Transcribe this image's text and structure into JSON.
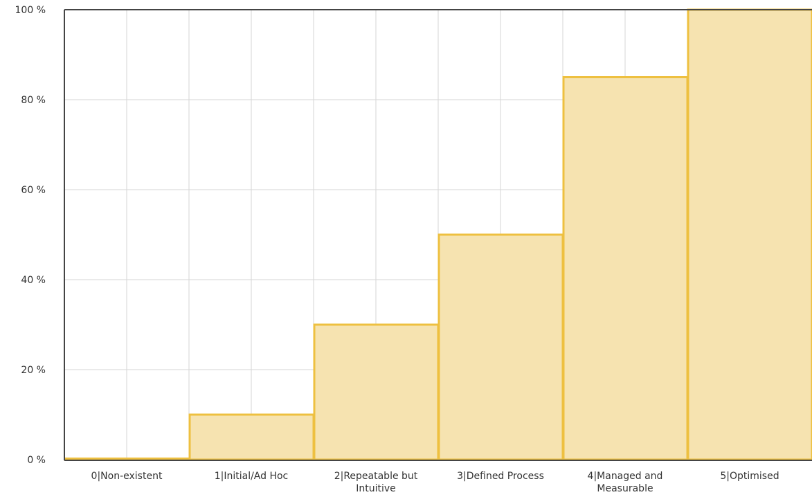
{
  "chart_data": {
    "type": "area",
    "step": true,
    "categories": [
      [
        "0|Non-existent"
      ],
      [
        "1|Initial/Ad Hoc"
      ],
      [
        "2|Repeatable but",
        "Intuitive"
      ],
      [
        "3|Defined Process"
      ],
      [
        "4|Managed and",
        "Measurable"
      ],
      [
        "5|Optimised"
      ]
    ],
    "values": [
      0,
      10,
      30,
      50,
      85,
      100
    ],
    "ylim": [
      0,
      100
    ],
    "yticks": [
      0,
      20,
      40,
      60,
      80,
      100
    ],
    "ytick_suffix": " %",
    "grid": true,
    "title": "",
    "xlabel": "",
    "ylabel": "",
    "colors": {
      "fill": "#f6e3b0",
      "stroke": "#eec040",
      "grid": "#d6d6d6",
      "axis": "#444444"
    }
  }
}
